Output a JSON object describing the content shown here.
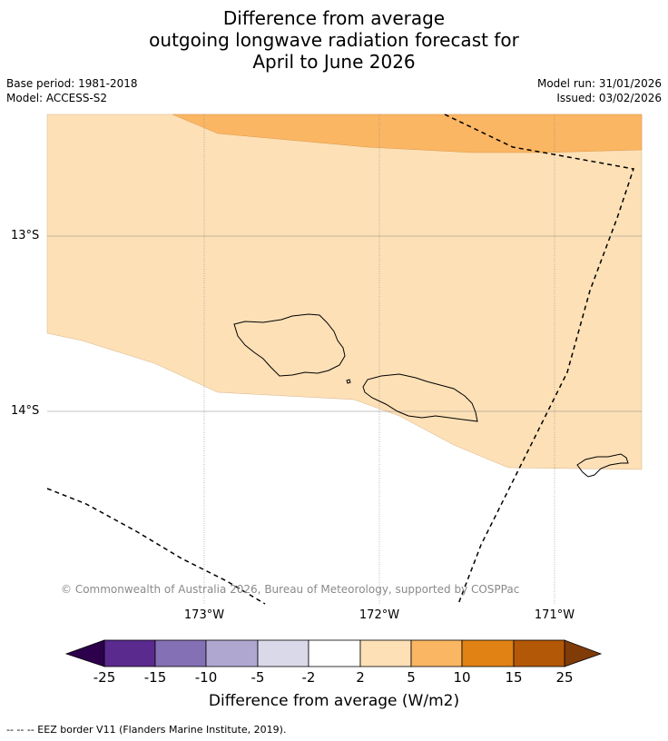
{
  "title": {
    "line1": "Difference from average",
    "line2": "outgoing longwave radiation forecast for",
    "line3": "April to June 2026"
  },
  "meta": {
    "base_period": "Base period: 1981-2018",
    "model": "Model: ACCESS-S2",
    "model_run": "Model run: 31/01/2026",
    "issued": "Issued: 03/02/2026"
  },
  "map": {
    "lat_labels": [
      "13°S",
      "14°S"
    ],
    "lon_labels": [
      "173°W",
      "172°W",
      "171°W"
    ],
    "copyright": "© Commonwealth of Australia 2026, Bureau of Meteorology, supported by COSPPac",
    "colors": {
      "land_outline": "#000000",
      "light_orange": "#fde0b6",
      "mid_orange": "#fbb663",
      "grid": "#888888",
      "eez": "#000000"
    }
  },
  "colorbar": {
    "ticks": [
      "-25",
      "-15",
      "-10",
      "-5",
      "-2",
      "2",
      "5",
      "10",
      "15",
      "25"
    ],
    "colors": [
      "#5a2a8f",
      "#8470b4",
      "#b0a7d1",
      "#d9d9ea",
      "#ffffff",
      "#fde0b6",
      "#fbb663",
      "#e08214",
      "#b35806"
    ],
    "extend_low_color": "#2d004b",
    "extend_high_color": "#7f3b08",
    "label": "Difference from average (W/m2)"
  },
  "legend_note": "--  --  -- EEZ border V11 (Flanders Marine Institute, 2019)."
}
